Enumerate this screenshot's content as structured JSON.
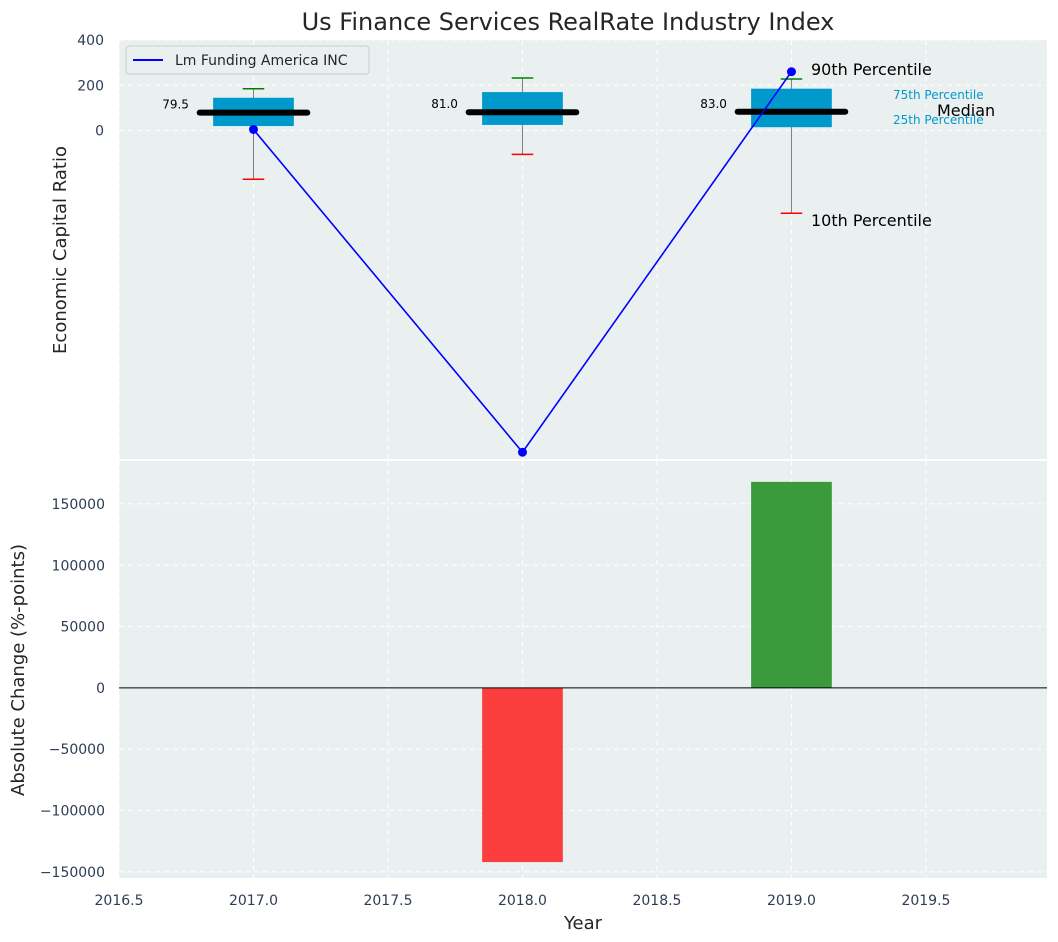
{
  "title": "Us Finance Services RealRate Industry Index",
  "colors": {
    "panel_bg": "#eaeff0",
    "box": "#0099cc",
    "median": "#000000",
    "line": "#0000ff",
    "whisker_high": "#008000",
    "whisker_low": "#ff0000",
    "bar_pos": "#3b9a3b",
    "bar_neg": "#fc3d3d"
  },
  "chart_data": [
    {
      "type": "box",
      "ylabel": "Economic Capital Ratio",
      "ylim": [
        -1450,
        400
      ],
      "yticks": [
        0,
        200,
        400
      ],
      "xlim": [
        2016.5,
        2019.95
      ],
      "grid": true,
      "legend": {
        "placement": "top-left",
        "entries": [
          "Lm Funding America INC"
        ]
      },
      "boxes": [
        {
          "x": 2017,
          "q1": 20,
          "q3": 145,
          "median": 79.5,
          "median_label": "79.5",
          "p10": -215,
          "p90": 185
        },
        {
          "x": 2018,
          "q1": 25,
          "q3": 170,
          "median": 81.0,
          "median_label": "81.0",
          "p10": -105,
          "p90": 232
        },
        {
          "x": 2019,
          "q1": 15,
          "q3": 185,
          "median": 83.0,
          "median_label": "83.0",
          "p10": -365,
          "p90": 228
        }
      ],
      "series": [
        {
          "name": "Lm Funding America INC",
          "x": [
            2017,
            2018,
            2019
          ],
          "y": [
            5,
            -1420,
            260
          ]
        }
      ],
      "annotations": {
        "p90": "90th Percentile",
        "p10": "10th Percentile",
        "p75": "75th Percentile",
        "p25": "25th Percentile",
        "median": "Median"
      }
    },
    {
      "type": "bar",
      "xlabel": "Year",
      "ylabel": "Absolute Change (%-points)",
      "ylim": [
        -155000,
        185000
      ],
      "yticks": [
        -150000,
        -100000,
        -50000,
        0,
        50000,
        100000,
        150000
      ],
      "xlim": [
        2016.5,
        2019.95
      ],
      "xticks": [
        2016.5,
        2017.0,
        2017.5,
        2018.0,
        2018.5,
        2019.0,
        2019.5
      ],
      "grid": true,
      "x": [
        2018,
        2019
      ],
      "values": [
        -142000,
        168000
      ]
    }
  ]
}
